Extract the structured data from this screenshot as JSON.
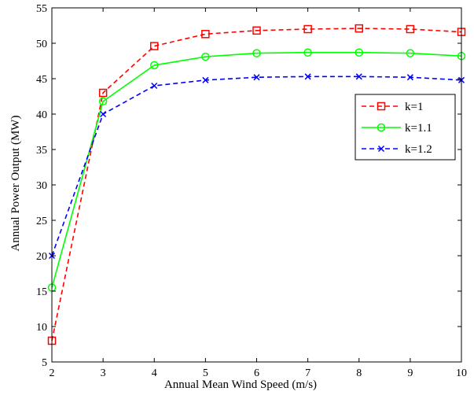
{
  "chart_data": {
    "type": "line",
    "title": "",
    "xlabel": "Annual Mean Wind Speed (m/s)",
    "ylabel": "Annual Power Output (MW)",
    "xlim": [
      2,
      10
    ],
    "ylim": [
      5,
      55
    ],
    "xticks": [
      2,
      3,
      4,
      5,
      6,
      7,
      8,
      9,
      10
    ],
    "yticks": [
      5,
      10,
      15,
      20,
      25,
      30,
      35,
      40,
      45,
      50,
      55
    ],
    "grid": false,
    "legend_position": "right",
    "x": [
      2,
      3,
      4,
      5,
      6,
      7,
      8,
      9,
      10
    ],
    "series": [
      {
        "name": "k=1",
        "color": "#ff0000",
        "line_style": "dashed",
        "marker": "square",
        "values": [
          8.0,
          43.0,
          49.6,
          51.3,
          51.8,
          52.0,
          52.1,
          52.0,
          51.6
        ]
      },
      {
        "name": "k=1.1",
        "color": "#00ff00",
        "line_style": "solid",
        "marker": "circle",
        "values": [
          15.5,
          41.8,
          46.9,
          48.1,
          48.6,
          48.7,
          48.7,
          48.6,
          48.2
        ]
      },
      {
        "name": "k=1.2",
        "color": "#0000ff",
        "line_style": "dashed",
        "marker": "x",
        "values": [
          20.0,
          40.0,
          44.0,
          44.8,
          45.2,
          45.3,
          45.3,
          45.2,
          44.8
        ]
      }
    ]
  }
}
